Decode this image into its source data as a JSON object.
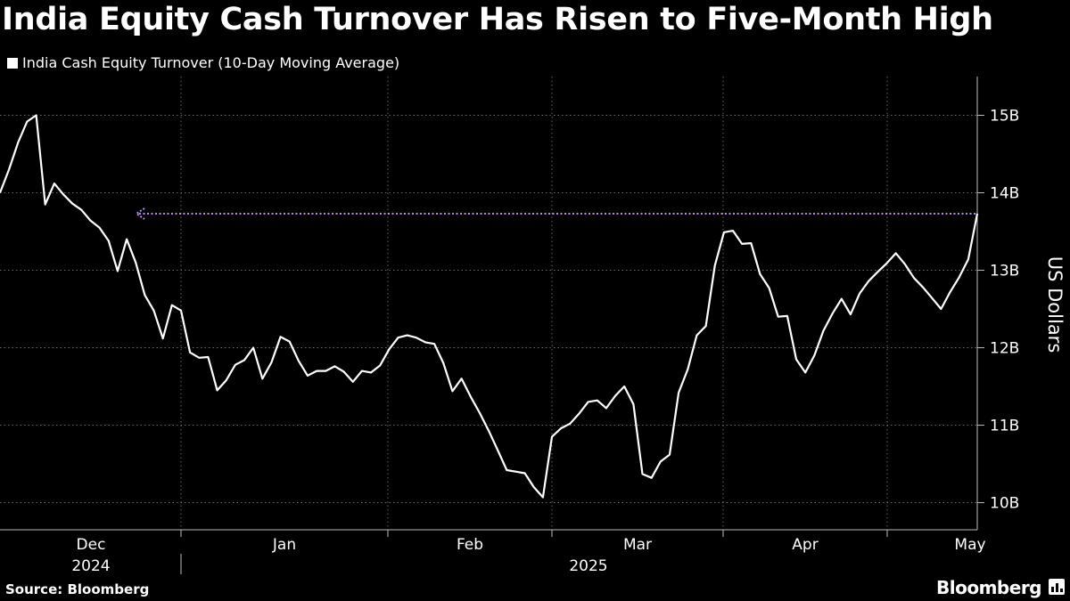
{
  "header": {
    "title": "India Equity Cash Turnover Has Risen to Five-Month High"
  },
  "legend": {
    "label": "India Cash Equity Turnover (10-Day Moving Average)"
  },
  "footer": {
    "source": "Source: Bloomberg",
    "brand": "Bloomberg"
  },
  "colors": {
    "background": "#000000",
    "line": "#ffffff",
    "arrow": "#b58cf0",
    "grid": "#6a6a6a"
  },
  "chart_data": {
    "type": "line",
    "ylabel": "US Dollars",
    "y_axis_position": "right",
    "ylim": [
      9.65,
      15.5
    ],
    "y_ticks": [
      {
        "value": 10,
        "label": "10B"
      },
      {
        "value": 11,
        "label": "11B"
      },
      {
        "value": 12,
        "label": "12B"
      },
      {
        "value": 13,
        "label": "13B"
      },
      {
        "value": 14,
        "label": "14B"
      },
      {
        "value": 15,
        "label": "15B"
      }
    ],
    "x_month_labels": [
      "Dec",
      "Jan",
      "Feb",
      "Mar",
      "Apr",
      "May"
    ],
    "x_year_labels": [
      "2024",
      "2025"
    ],
    "grid": true,
    "legend_position": "top-left",
    "annotation": {
      "type": "dotted-arrow",
      "value": 13.73,
      "description": "horizontal level at latest value"
    },
    "series": [
      {
        "name": "India Cash Equity Turnover (10-Day Moving Average)",
        "values": [
          14.0,
          14.3,
          14.65,
          14.92,
          15.0,
          13.85,
          14.12,
          13.98,
          13.86,
          13.78,
          13.64,
          13.55,
          13.38,
          12.99,
          13.4,
          13.1,
          12.68,
          12.48,
          12.12,
          12.55,
          12.48,
          11.94,
          11.87,
          11.88,
          11.45,
          11.58,
          11.78,
          11.84,
          12.0,
          11.6,
          11.81,
          12.14,
          12.08,
          11.83,
          11.64,
          11.7,
          11.7,
          11.76,
          11.69,
          11.56,
          11.7,
          11.68,
          11.77,
          11.98,
          12.13,
          12.16,
          12.13,
          12.07,
          12.05,
          11.8,
          11.44,
          11.6,
          11.37,
          11.16,
          10.93,
          10.68,
          10.42,
          10.4,
          10.38,
          10.2,
          10.07,
          10.85,
          10.96,
          11.02,
          11.15,
          11.3,
          11.32,
          11.22,
          11.38,
          11.5,
          11.27,
          10.37,
          10.32,
          10.53,
          10.62,
          11.42,
          11.72,
          12.16,
          12.28,
          13.06,
          13.49,
          13.51,
          13.34,
          13.35,
          12.95,
          12.77,
          12.4,
          12.41,
          11.85,
          11.68,
          11.9,
          12.22,
          12.44,
          12.63,
          12.43,
          12.7,
          12.86,
          12.98,
          13.09,
          13.22,
          13.08,
          12.9,
          12.78,
          12.64,
          12.5,
          12.72,
          12.91,
          13.14,
          13.73
        ]
      }
    ]
  }
}
